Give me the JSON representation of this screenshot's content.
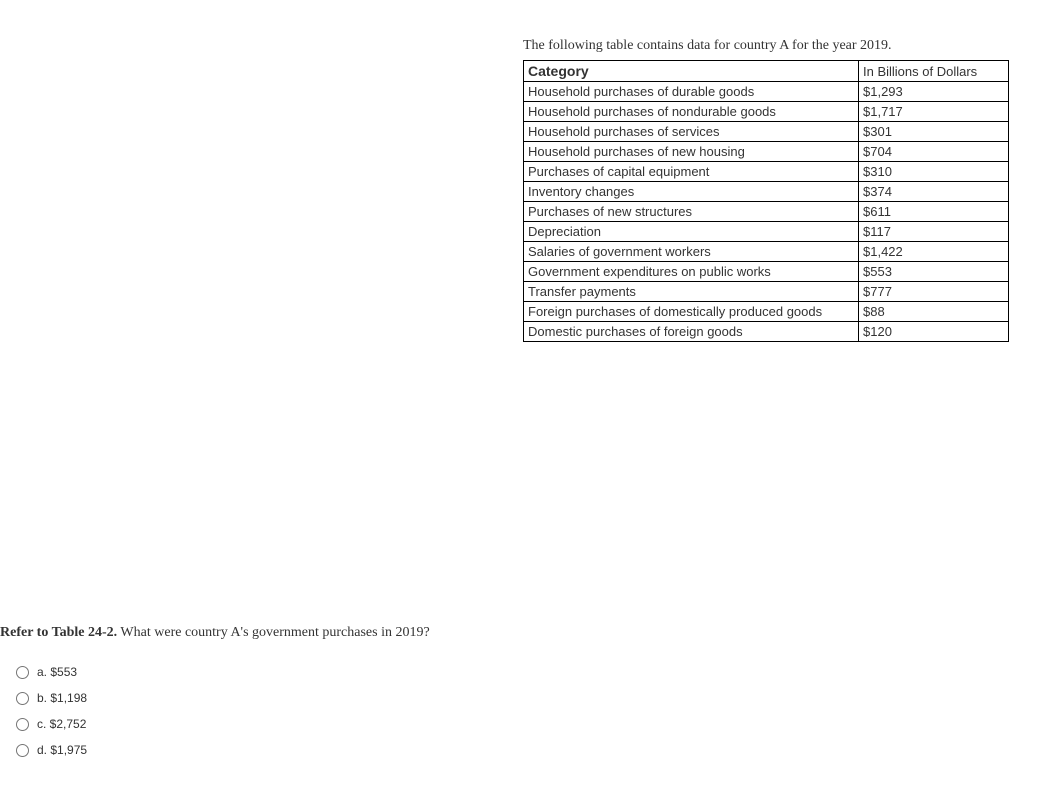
{
  "intro": "The following table contains data for country A for the year 2019.",
  "table": {
    "header_category": "Category",
    "header_value": "In Billions of Dollars",
    "rows": [
      {
        "category": "Household purchases of durable goods",
        "value": "$1,293"
      },
      {
        "category": "Household purchases of nondurable goods",
        "value": "$1,717"
      },
      {
        "category": "Household purchases of services",
        "value": "$301"
      },
      {
        "category": "Household purchases of new housing",
        "value": "$704"
      },
      {
        "category": "Purchases of capital equipment",
        "value": "$310"
      },
      {
        "category": "Inventory changes",
        "value": "$374"
      },
      {
        "category": "Purchases of new structures",
        "value": "$611"
      },
      {
        "category": "Depreciation",
        "value": "$117"
      },
      {
        "category": "Salaries of government workers",
        "value": "$1,422"
      },
      {
        "category": "Government expenditures on public works",
        "value": "$553"
      },
      {
        "category": "Transfer payments",
        "value": "$777"
      },
      {
        "category": "Foreign purchases of domestically produced goods",
        "value": "$88"
      },
      {
        "category": "Domestic purchases of foreign goods",
        "value": "$120"
      }
    ]
  },
  "question": {
    "prefix": "Refer to Table 24-2.",
    "text": " What were country A's government purchases in 2019?",
    "choices": [
      {
        "label": "a. $553"
      },
      {
        "label": "b. $1,198"
      },
      {
        "label": "c. $2,752"
      },
      {
        "label": "d. $1,975"
      }
    ]
  },
  "colors": {
    "text": "#333333",
    "border": "#000000",
    "background": "#ffffff"
  }
}
